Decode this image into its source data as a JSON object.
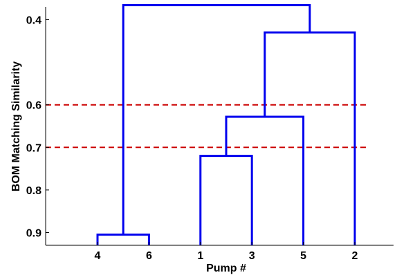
{
  "chart_data": {
    "type": "dendrogram",
    "xlabel": "Pump #",
    "ylabel": "BOM Matching Similarity",
    "leaves": [
      "4",
      "6",
      "1",
      "3",
      "5",
      "2"
    ],
    "yticks": [
      0.4,
      0.6,
      0.7,
      0.8,
      0.9
    ],
    "yticklabels": [
      "0.4",
      "0.6",
      "0.7",
      "0.8",
      "0.9"
    ],
    "y_axis_inverted": true,
    "ylim": [
      0.37,
      0.93
    ],
    "links": [
      {
        "left": "4",
        "right": "6",
        "similarity": 0.905
      },
      {
        "left": "1",
        "right": "3",
        "similarity": 0.72
      },
      {
        "left": "(1,3)",
        "right": "5",
        "similarity": 0.628
      },
      {
        "left": "(1,3,5)",
        "right": "2",
        "similarity": 0.43
      },
      {
        "left": "(4,6)",
        "right": "(1,3,5,2)",
        "similarity": 0.366
      }
    ],
    "threshold_lines": [
      0.6,
      0.7
    ],
    "colors": {
      "tree": "#0000ee",
      "threshold": "#cc0000"
    },
    "grid": false
  }
}
